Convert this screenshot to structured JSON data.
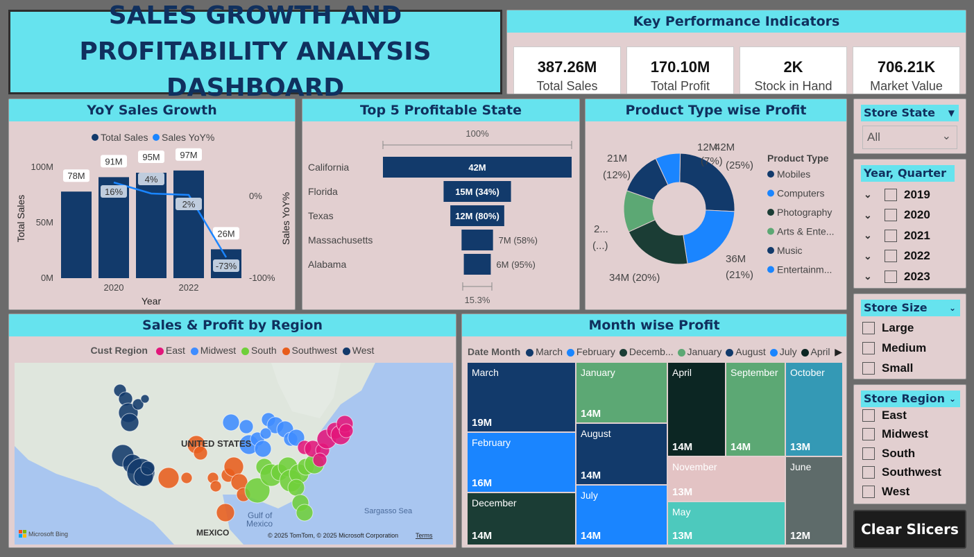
{
  "title": "SALES GROWTH AND PROFITABILITY ANALYSIS DASHBOARD",
  "kpi": {
    "header": "Key Performance Indicators",
    "items": [
      {
        "value": "387.26M",
        "label": "Total Sales"
      },
      {
        "value": "170.10M",
        "label": "Total Profit"
      },
      {
        "value": "2K",
        "label": "Stock in Hand"
      },
      {
        "value": "706.21K",
        "label": "Market Value"
      }
    ]
  },
  "yoy": {
    "header": "YoY Sales Growth",
    "legend": [
      "Total Sales",
      "Sales YoY%"
    ],
    "ylabel": "Total Sales",
    "y2label": "Sales YoY%",
    "xlabel": "Year",
    "yticks": [
      "100M",
      "50M",
      "0M"
    ],
    "y2ticks": [
      "0%",
      "-100%"
    ],
    "xticks": [
      "2020",
      "2022"
    ],
    "bar_labels": [
      "78M",
      "91M",
      "95M",
      "97M",
      "26M"
    ],
    "pct_labels": [
      "16%",
      "4%",
      "2%",
      "-73%"
    ]
  },
  "top5": {
    "header": "Top 5 Profitable State",
    "top_label": "100%",
    "bottom_label": "15.3%",
    "states": [
      "California",
      "Florida",
      "Texas",
      "Massachusetts",
      "Alabama"
    ],
    "labels": [
      "42M",
      "15M (34%)",
      "12M (80%)",
      "7M (58%)",
      "6M (95%)"
    ]
  },
  "product": {
    "header": "Product Type wise Profit",
    "legend_title": "Product Type",
    "types": [
      "Mobiles",
      "Computers",
      "Photography",
      "Arts & Ente...",
      "Music",
      "Entertainm..."
    ],
    "slice_labels": {
      "a": "42M",
      "a2": "(25%)",
      "b": "36M",
      "b2": "(21%)",
      "c": "34M (20%)",
      "d": "2...",
      "d2": "(...)",
      "e": "21M",
      "e2": "(12%)",
      "f": "12M",
      "f2": "(7%)"
    }
  },
  "region_map": {
    "header": "Sales & Profit by Region",
    "legend_title": "Cust Region",
    "regions": [
      "East",
      "Midwest",
      "South",
      "Southwest",
      "West"
    ],
    "map_labels": [
      "UNITED STATES",
      "MEXICO",
      "Gulf of",
      "Mexico",
      "Sargasso Sea"
    ],
    "attribution": "© 2025 TomTom, © 2025 Microsoft Corporation",
    "terms": "Terms",
    "bing": "Microsoft Bing"
  },
  "month": {
    "header": "Month wise Profit",
    "legend_title": "Date Month",
    "legend": [
      "March",
      "February",
      "Decemb...",
      "January",
      "August",
      "July",
      "April"
    ],
    "tiles": [
      {
        "name": "March",
        "value": "19M"
      },
      {
        "name": "February",
        "value": "16M"
      },
      {
        "name": "December",
        "value": "14M"
      },
      {
        "name": "January",
        "value": "14M"
      },
      {
        "name": "August",
        "value": "14M"
      },
      {
        "name": "July",
        "value": "14M"
      },
      {
        "name": "April",
        "value": "14M"
      },
      {
        "name": "September",
        "value": "14M"
      },
      {
        "name": "October",
        "value": "13M"
      },
      {
        "name": "November",
        "value": "13M"
      },
      {
        "name": "June",
        "value": "12M"
      },
      {
        "name": "May",
        "value": "13M"
      }
    ]
  },
  "slicers": {
    "store_state": {
      "title": "Store State",
      "value": "All"
    },
    "year_quarter": {
      "title": "Year, Quarter",
      "years": [
        "2019",
        "2020",
        "2021",
        "2022",
        "2023"
      ]
    },
    "store_size": {
      "title": "Store Size",
      "options": [
        "Large",
        "Medium",
        "Small"
      ]
    },
    "store_region": {
      "title": "Store Region",
      "options": [
        "East",
        "Midwest",
        "South",
        "Southwest",
        "West"
      ]
    },
    "clear": "Clear Slicers"
  },
  "chart_data": [
    {
      "type": "bar",
      "title": "YoY Sales Growth",
      "categories": [
        "2019",
        "2020",
        "2021",
        "2022",
        "2023"
      ],
      "series": [
        {
          "name": "Total Sales",
          "values": [
            78,
            91,
            95,
            97,
            26
          ]
        },
        {
          "name": "Sales YoY%",
          "values": [
            null,
            16,
            4,
            2,
            -73
          ]
        }
      ],
      "xlabel": "Year",
      "ylabel": "Total Sales",
      "ylim": [
        0,
        100
      ],
      "y2label": "Sales YoY%",
      "y2lim": [
        -100,
        0
      ]
    },
    {
      "type": "bar",
      "title": "Top 5 Profitable State",
      "categories": [
        "California",
        "Florida",
        "Texas",
        "Massachusetts",
        "Alabama"
      ],
      "values": [
        42,
        15,
        12,
        7,
        6
      ]
    },
    {
      "type": "pie",
      "title": "Product Type wise Profit",
      "categories": [
        "Mobiles",
        "Computers",
        "Photography",
        "Arts & Entertainment",
        "Music",
        "Entertainment"
      ],
      "values": [
        42,
        36,
        34,
        20,
        21,
        12
      ]
    },
    {
      "type": "heatmap",
      "title": "Month wise Profit",
      "categories": [
        "March",
        "February",
        "December",
        "January",
        "August",
        "July",
        "April",
        "September",
        "October",
        "November",
        "June",
        "May"
      ],
      "values": [
        19,
        16,
        14,
        14,
        14,
        14,
        14,
        14,
        13,
        13,
        12,
        13
      ]
    }
  ],
  "colors": {
    "navy": "#123a6b",
    "blue": "#1a85ff",
    "darkgreen": "#1b3d35",
    "green": "#5ca874",
    "pink": "#e2167a",
    "orange": "#e85d1c",
    "lime": "#6fcf3a",
    "teal": "#66e3ee"
  }
}
